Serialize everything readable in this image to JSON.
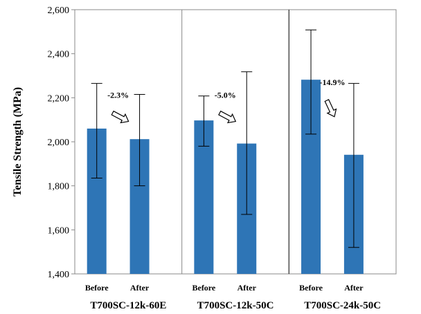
{
  "chart_data": {
    "type": "bar",
    "ylabel": "Tensile Strength (MPa)",
    "ylim": [
      1400,
      2600
    ],
    "yticks": [
      1400,
      1600,
      1800,
      2000,
      2200,
      2400,
      2600
    ],
    "ytick_labels": [
      "1,400",
      "1,600",
      "1,800",
      "2,000",
      "2,200",
      "2,400",
      "2,600"
    ],
    "grid": false,
    "bar_color": "#2E75B6",
    "groups": [
      {
        "name": "T700SC-12k-60E",
        "change_label": "-2.3%",
        "bars": [
          {
            "category": "Before",
            "value": 2060,
            "err_low": 1835,
            "err_high": 2265
          },
          {
            "category": "After",
            "value": 2012,
            "err_low": 1800,
            "err_high": 2215
          }
        ]
      },
      {
        "name": "T700SC-12k-50C",
        "change_label": "-5.0%",
        "bars": [
          {
            "category": "Before",
            "value": 2097,
            "err_low": 1980,
            "err_high": 2208
          },
          {
            "category": "After",
            "value": 1992,
            "err_low": 1670,
            "err_high": 2318
          }
        ]
      },
      {
        "name": "T700SC-24k-50C",
        "change_label": "-14.9%",
        "bars": [
          {
            "category": "Before",
            "value": 2282,
            "err_low": 2035,
            "err_high": 2508
          },
          {
            "category": "After",
            "value": 1941,
            "err_low": 1520,
            "err_high": 2265
          }
        ]
      }
    ]
  }
}
